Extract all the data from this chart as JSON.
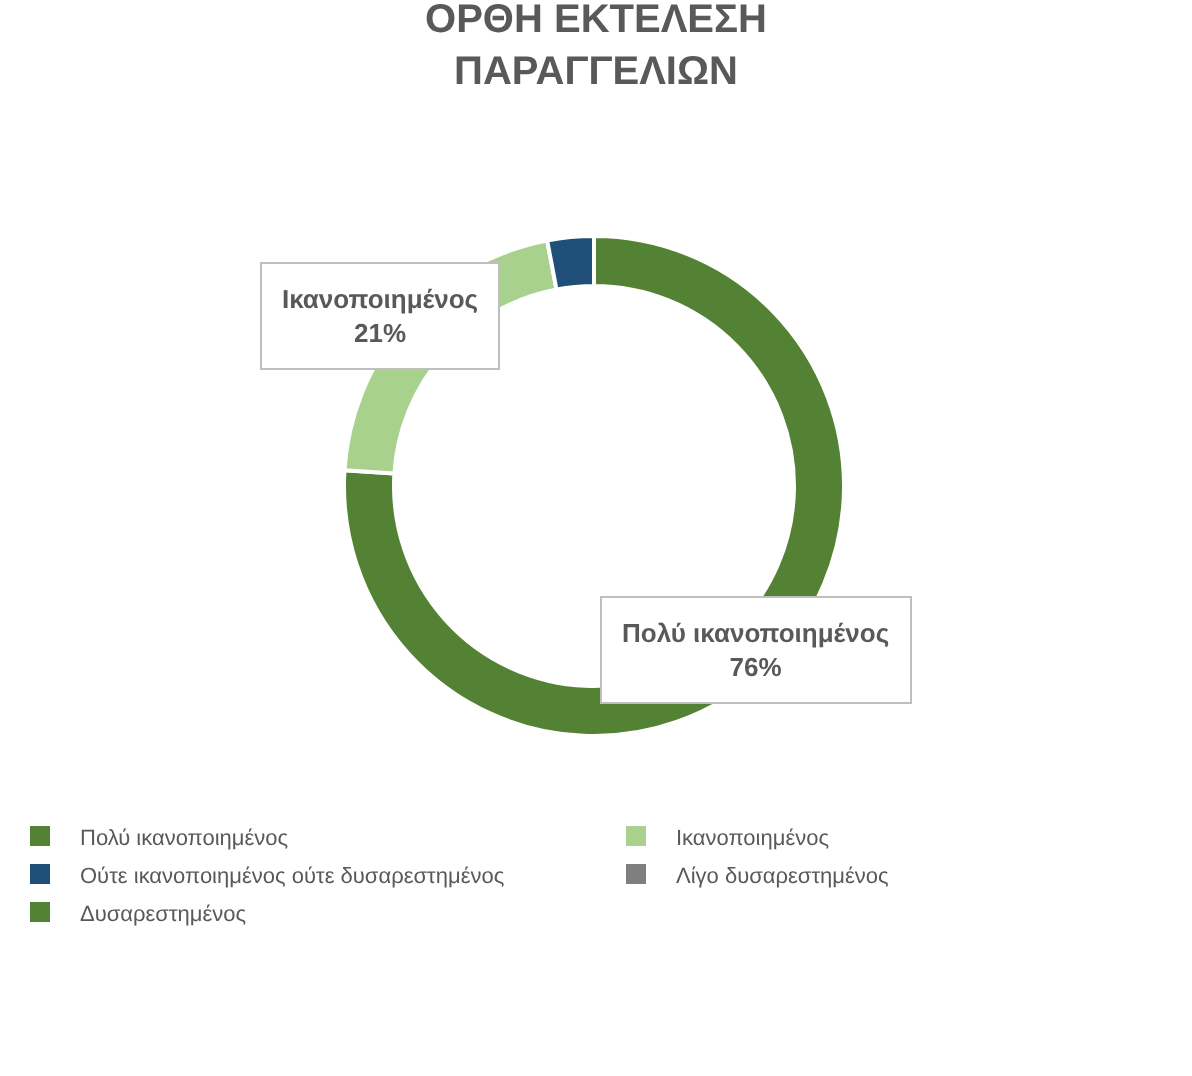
{
  "chart_data": {
    "type": "donut",
    "title": "ΟΡΘΗ ΕΚΤΕΛΕΣΗ\nΠΑΡΑΓΓΕΛΙΩΝ",
    "categories": [
      "Πολύ ικανοποιημένος",
      "Ικανοποιημένος",
      "Ούτε ικανοποιημένος ούτε δυσαρεστημένος",
      "Λίγο δυσαρεστημένος",
      "Δυσαρεστημένος"
    ],
    "values": [
      76,
      21,
      3,
      0,
      0
    ],
    "colors": [
      "#548235",
      "#a9d18e",
      "#1f4e79",
      "#7f7f7f",
      "#548235"
    ],
    "value_labels": [
      "Πολύ ικανοποιημένος\n76%",
      "Ικανοποιημένος\n21%",
      null,
      null,
      null
    ],
    "legend": "bottom"
  }
}
